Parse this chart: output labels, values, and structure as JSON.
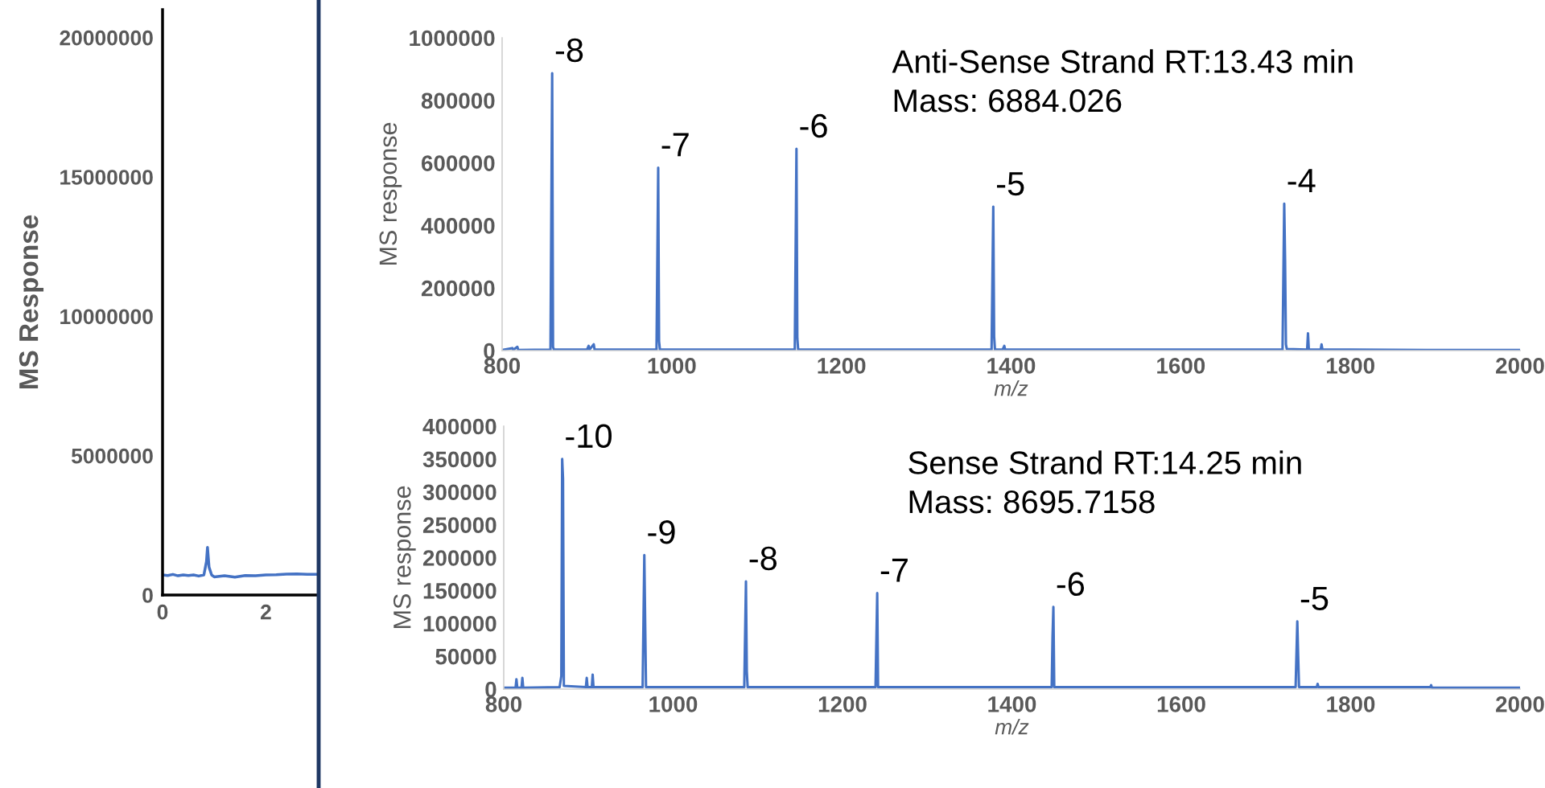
{
  "chart_data": [
    {
      "type": "line",
      "ylabel": "MS Response",
      "xlim": [
        0,
        2.99
      ],
      "ylim": [
        0,
        21000000
      ],
      "xticks": [
        0,
        2
      ],
      "yticks": [
        0,
        5000000,
        10000000,
        15000000,
        20000000
      ],
      "grid": false,
      "legend": false,
      "marker": "none",
      "series": [
        {
          "color": "#4472c4",
          "x": [
            0,
            0.1,
            0.2,
            0.3,
            0.4,
            0.5,
            0.6,
            0.7,
            0.8,
            0.85,
            0.87,
            0.9,
            0.95,
            1.0,
            1.2,
            1.4,
            1.6,
            1.8,
            2.0,
            2.2,
            2.4,
            2.6,
            2.8,
            2.99
          ],
          "values": [
            720000,
            700000,
            740000,
            690000,
            720000,
            700000,
            720000,
            680000,
            720000,
            1200000,
            1710000,
            1000000,
            720000,
            650000,
            690000,
            640000,
            700000,
            690000,
            720000,
            730000,
            750000,
            760000,
            740000,
            740000
          ]
        }
      ]
    },
    {
      "type": "line",
      "xlabel": "m/z",
      "ylabel": "MS response",
      "xlim": [
        800,
        2000
      ],
      "ylim": [
        0,
        1000000
      ],
      "xticks": [
        800,
        1000,
        1200,
        1400,
        1600,
        1800,
        2000
      ],
      "yticks": [
        0,
        200000,
        400000,
        600000,
        800000,
        1000000
      ],
      "grid": false,
      "legend": false,
      "marker": "none",
      "series": [
        {
          "color": "#4472c4",
          "x": [
            800,
            812,
            813,
            818,
            819,
            857,
            859,
            860,
            861,
            900,
            902,
            903,
            908,
            909,
            982,
            984,
            985,
            986,
            1145,
            1147,
            1148,
            1149,
            1377,
            1379,
            1380,
            1381,
            1390,
            1392,
            1393,
            1720,
            1722,
            1723,
            1724,
            1725,
            1749,
            1750,
            1751,
            1765,
            1766,
            1767,
            1800,
            1890,
            2000
          ],
          "values": [
            2000,
            8000,
            2000,
            12000,
            2000,
            3000,
            887000,
            12000,
            3000,
            3000,
            15000,
            3000,
            20000,
            3000,
            3000,
            585000,
            30000,
            3000,
            3000,
            645000,
            40000,
            3000,
            3000,
            460000,
            45000,
            3000,
            3000,
            15000,
            3000,
            3000,
            470000,
            292000,
            20000,
            5000,
            3000,
            55000,
            3000,
            3000,
            20000,
            3000,
            3000,
            2000,
            2000
          ]
        }
      ],
      "annotations": [
        {
          "text": "-8",
          "x": 859,
          "y": 887000
        },
        {
          "text": "-7",
          "x": 984,
          "y": 585000
        },
        {
          "text": "-6",
          "x": 1147,
          "y": 645000
        },
        {
          "text": "-5",
          "x": 1379,
          "y": 460000
        },
        {
          "text": "-4",
          "x": 1722,
          "y": 470000
        },
        "Anti-Sense Strand RT:13.43 min",
        "Mass: 6884.026"
      ]
    },
    {
      "type": "line",
      "xlabel": "m/z",
      "ylabel": "MS response",
      "xlim": [
        800,
        2000
      ],
      "ylim": [
        0,
        400000
      ],
      "xticks": [
        800,
        1000,
        1200,
        1400,
        1600,
        1800,
        2000
      ],
      "yticks": [
        0,
        50000,
        100000,
        150000,
        200000,
        250000,
        300000,
        350000,
        400000
      ],
      "grid": false,
      "legend": false,
      "marker": "none",
      "series": [
        {
          "color": "#4472c4",
          "x": [
            800,
            814,
            815,
            816,
            821,
            822,
            823,
            866,
            868,
            869,
            870,
            871,
            897,
            898,
            899,
            904,
            905,
            906,
            964,
            966,
            967,
            968,
            1084,
            1086,
            1087,
            1088,
            1239,
            1241,
            1242,
            1447,
            1448,
            1449,
            1450,
            1735,
            1737,
            1738,
            1739,
            1760,
            1761,
            1762,
            1894,
            1895,
            1896,
            2000
          ],
          "values": [
            2000,
            2000,
            15000,
            2000,
            2000,
            17000,
            2000,
            3000,
            20000,
            350000,
            320000,
            5000,
            3000,
            17000,
            3000,
            3000,
            22000,
            3000,
            3000,
            204000,
            101000,
            3000,
            3000,
            164000,
            27000,
            3000,
            3000,
            146000,
            3000,
            3000,
            80000,
            125000,
            3000,
            3000,
            103000,
            51000,
            3000,
            3000,
            8000,
            3000,
            3000,
            6000,
            2000,
            2000
          ]
        }
      ],
      "annotations": [
        {
          "text": "-10",
          "x": 869,
          "y": 350000
        },
        {
          "text": "-9",
          "x": 966,
          "y": 204000
        },
        {
          "text": "-8",
          "x": 1086,
          "y": 164000
        },
        {
          "text": "-7",
          "x": 1241,
          "y": 146000
        },
        {
          "text": "-6",
          "x": 1449,
          "y": 125000
        },
        {
          "text": "-5",
          "x": 1737,
          "y": 103000
        },
        "Sense Strand RT:14.25 min",
        "Mass: 8695.7158"
      ]
    }
  ]
}
